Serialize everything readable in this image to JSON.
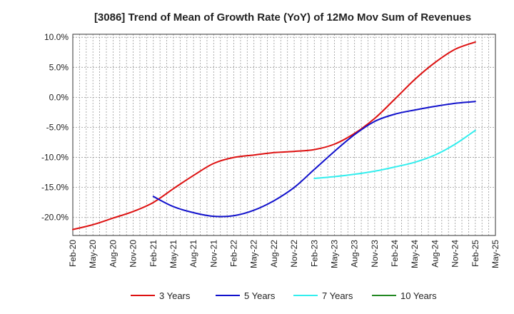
{
  "chart_data": {
    "type": "line",
    "title": "[3086]  Trend of Mean of Growth Rate (YoY) of 12Mo Mov Sum of Revenues",
    "xlabel": "",
    "ylabel": "",
    "ylim": [
      -23,
      10.5
    ],
    "y_ticks": [
      10.0,
      5.0,
      0.0,
      -5.0,
      -10.0,
      -15.0,
      -20.0
    ],
    "y_tick_labels": [
      "10.0%",
      "5.0%",
      "0.0%",
      "-5.0%",
      "-10.0%",
      "-15.0%",
      "-20.0%"
    ],
    "x_tick_labels": [
      "Feb-20",
      "May-20",
      "Aug-20",
      "Nov-20",
      "Feb-21",
      "May-21",
      "Aug-21",
      "Nov-21",
      "Feb-22",
      "May-22",
      "Aug-22",
      "Nov-22",
      "Feb-23",
      "May-23",
      "Aug-23",
      "Nov-23",
      "Feb-24",
      "May-24",
      "Aug-24",
      "Nov-24",
      "Feb-25",
      "May-25"
    ],
    "grid": true,
    "legend_position": "bottom",
    "series": [
      {
        "name": "3 Years",
        "color": "#dd1111",
        "x": [
          0,
          3,
          6,
          9,
          12,
          15,
          18,
          21,
          24,
          27,
          30,
          33,
          36,
          39,
          42,
          45,
          48,
          51,
          54,
          57,
          60
        ],
        "values": [
          -22.0,
          -21.2,
          -20.1,
          -19.0,
          -17.5,
          -15.2,
          -13.0,
          -11.0,
          -10.0,
          -9.6,
          -9.2,
          -9.0,
          -8.7,
          -7.8,
          -6.0,
          -3.5,
          -0.3,
          3.0,
          5.8,
          8.0,
          9.2
        ]
      },
      {
        "name": "5 Years",
        "color": "#1111cc",
        "x": [
          12,
          15,
          18,
          21,
          24,
          27,
          30,
          33,
          36,
          39,
          42,
          45,
          48,
          51,
          54,
          57,
          60
        ],
        "values": [
          -16.5,
          -18.2,
          -19.2,
          -19.8,
          -19.7,
          -18.8,
          -17.2,
          -15.0,
          -12.0,
          -9.0,
          -6.2,
          -4.0,
          -2.8,
          -2.1,
          -1.5,
          -1.0,
          -0.7
        ]
      },
      {
        "name": "7 Years",
        "color": "#33eeee",
        "x": [
          36,
          39,
          42,
          45,
          48,
          51,
          54,
          57,
          60
        ],
        "values": [
          -13.5,
          -13.2,
          -12.8,
          -12.3,
          -11.6,
          -10.8,
          -9.6,
          -7.8,
          -5.5
        ]
      },
      {
        "name": "10 Years",
        "color": "#228822",
        "x": [],
        "values": []
      }
    ]
  }
}
